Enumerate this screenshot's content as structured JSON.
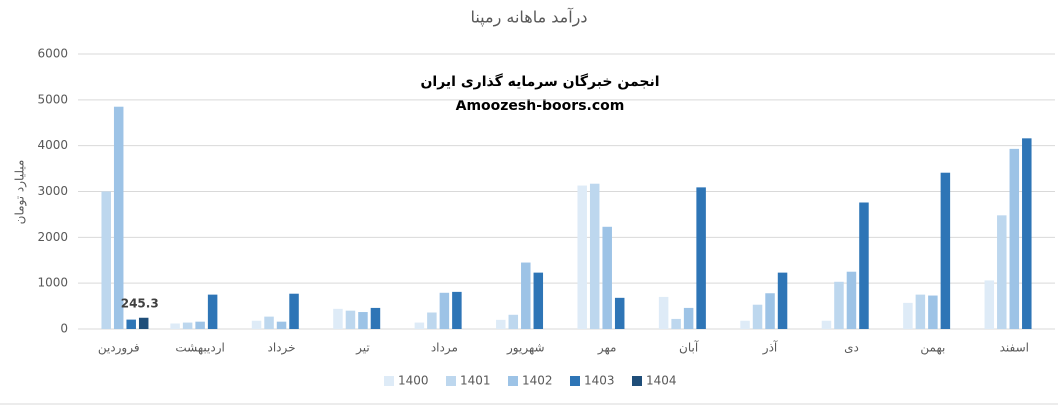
{
  "chart_data": {
    "type": "bar",
    "title": "درآمد ماهانه رمپنا",
    "y_label": "میلیارد تومان",
    "annotations": [
      "انجمن خبرگان سرمایه گذاری ایران",
      "Amoozesh-boors.com"
    ],
    "categories": [
      "فروردین",
      "اردیبهشت",
      "خرداد",
      "تیر",
      "مرداد",
      "شهریور",
      "مهر",
      "آبان",
      "آذر",
      "دی",
      "بهمن",
      "اسفند"
    ],
    "series": [
      {
        "name": "1400",
        "color": "#deebf7",
        "values": [
          null,
          120,
          180,
          440,
          140,
          200,
          3130,
          700,
          180,
          180,
          570,
          1060
        ]
      },
      {
        "name": "1401",
        "color": "#bdd7ee",
        "values": [
          3000,
          140,
          270,
          400,
          360,
          310,
          3170,
          220,
          530,
          1030,
          750,
          2480
        ]
      },
      {
        "name": "1402",
        "color": "#9dc3e6",
        "values": [
          4850,
          160,
          160,
          370,
          790,
          1450,
          2230,
          460,
          780,
          1250,
          730,
          3930
        ]
      },
      {
        "name": "1403",
        "color": "#2e75b6",
        "values": [
          205,
          750,
          770,
          460,
          810,
          1230,
          680,
          3090,
          1230,
          2760,
          3410,
          4160
        ]
      },
      {
        "name": "1404",
        "color": "#1f4e79",
        "values": [
          245.3,
          null,
          null,
          null,
          null,
          null,
          null,
          null,
          null,
          null,
          null,
          null
        ],
        "value_labels": [
          "245.3",
          null,
          null,
          null,
          null,
          null,
          null,
          null,
          null,
          null,
          null,
          null
        ]
      }
    ],
    "ylim": [
      0,
      6000
    ],
    "yticks": [
      0,
      1000,
      2000,
      3000,
      4000,
      5000,
      6000
    ],
    "grid": true,
    "legend": "bottom"
  }
}
